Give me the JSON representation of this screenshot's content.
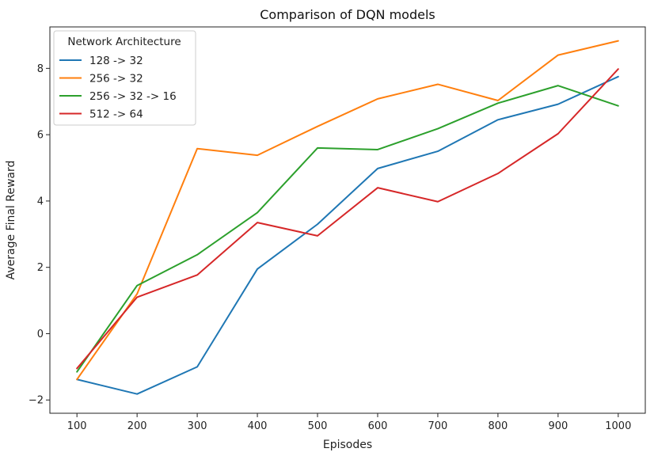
{
  "chart_data": {
    "type": "line",
    "title": "Comparison of DQN models",
    "xlabel": "Episodes",
    "ylabel": "Average Final Reward",
    "x": [
      100,
      200,
      300,
      400,
      500,
      600,
      700,
      800,
      900,
      1000
    ],
    "xticks": [
      100,
      200,
      300,
      400,
      500,
      600,
      700,
      800,
      900,
      1000
    ],
    "yticks": [
      -2,
      0,
      2,
      4,
      6,
      8
    ],
    "ytick_labels": [
      "−2",
      "0",
      "2",
      "4",
      "6",
      "8"
    ],
    "xlim": [
      55,
      1045
    ],
    "ylim": [
      -2.4,
      9.25
    ],
    "grid": false,
    "legend": {
      "title": "Network Architecture",
      "placement": "upper-left"
    },
    "series": [
      {
        "name": "128 -> 32",
        "color": "#1f77b4",
        "values": [
          -1.38,
          -1.82,
          -1.0,
          1.95,
          3.3,
          4.98,
          5.5,
          6.45,
          6.92,
          7.75
        ]
      },
      {
        "name": "256 -> 32",
        "color": "#ff7f0e",
        "values": [
          -1.38,
          1.2,
          5.58,
          5.38,
          6.25,
          7.08,
          7.52,
          7.03,
          8.4,
          8.83
        ]
      },
      {
        "name": "256 -> 32 -> 16",
        "color": "#2ca02c",
        "values": [
          -1.15,
          1.45,
          2.38,
          3.65,
          5.6,
          5.55,
          6.18,
          6.95,
          7.48,
          6.87
        ]
      },
      {
        "name": "512 -> 64",
        "color": "#d62728",
        "values": [
          -1.05,
          1.1,
          1.77,
          3.35,
          2.95,
          4.4,
          3.98,
          4.83,
          6.03,
          7.98
        ]
      }
    ]
  }
}
